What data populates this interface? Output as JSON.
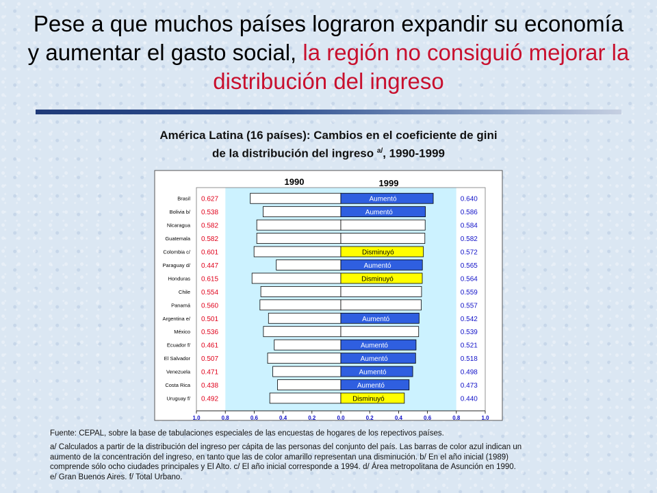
{
  "slide_title": {
    "part1": "Pese a que muchos países lograron expandir su economía y aumentar el gasto social,",
    "part2": "la región no consiguió mejorar la distribución del ingreso"
  },
  "chart_heading": {
    "line1": "América Latina (16 países): Cambios en el coeficiente de gini",
    "line2_pre": "de la distribución del ingreso",
    "line2_sup": "a/",
    "line2_post": ", 1990-1999"
  },
  "chart_data": {
    "type": "bar",
    "title": "",
    "year_labels": [
      "1990",
      "1999"
    ],
    "categories": [
      "Brasil",
      "Bolivia b/",
      "Nicaragua",
      "Guatemala",
      "Colombia c/",
      "Paraguay d/",
      "Honduras",
      "Chile",
      "Panamá",
      "Argentina e/",
      "México",
      "Ecuador f/",
      "El Salvador",
      "Venezuela",
      "Costa Rica",
      "Uruguay f/"
    ],
    "series": [
      {
        "name": "1990",
        "values": [
          0.627,
          0.538,
          0.582,
          0.582,
          0.601,
          0.447,
          0.615,
          0.554,
          0.56,
          0.501,
          0.536,
          0.461,
          0.507,
          0.471,
          0.438,
          0.492
        ]
      },
      {
        "name": "1999",
        "values": [
          0.64,
          0.586,
          0.584,
          0.582,
          0.572,
          0.565,
          0.564,
          0.559,
          0.557,
          0.542,
          0.539,
          0.521,
          0.518,
          0.498,
          0.473,
          0.44
        ]
      }
    ],
    "labels_1990": [
      "0.627",
      "0.538",
      "0.582",
      "0.582",
      "0.601",
      "0.447",
      "0.615",
      "0.554",
      "0.560",
      "0.501",
      "0.536",
      "0.461",
      "0.507",
      "0.471",
      "0.438",
      "0.492"
    ],
    "labels_1999": [
      "0.640",
      "0.586",
      "0.584",
      "0.582",
      "0.572",
      "0.565",
      "0.564",
      "0.559",
      "0.557",
      "0.542",
      "0.539",
      "0.521",
      "0.518",
      "0.498",
      "0.473",
      "0.440"
    ],
    "change": [
      "Aumentó",
      "Aumentó",
      "",
      "",
      "Disminuyó",
      "Aumentó",
      "Disminuyó",
      "",
      "",
      "Aumentó",
      "",
      "Aumentó",
      "Aumentó",
      "Aumentó",
      "Aumentó",
      "Disminuyó"
    ],
    "x_ticks": [
      "1.0",
      "0.8",
      "0.6",
      "0.4",
      "0.2",
      "0.0",
      "0.2",
      "0.4",
      "0.6",
      "0.8",
      "1.0"
    ],
    "xlim": [
      -1.0,
      1.0
    ],
    "colors": {
      "increase": "#2f5fe0",
      "decrease": "#ffff00",
      "neutral": "#ffffff",
      "value_1990": "#e0001a",
      "value_1999": "#1010c8",
      "plot_bg": "#ccf2ff"
    }
  },
  "source_note": "Fuente: CEPAL, sobre la base de tabulaciones especiales de las encuestas de hogares de los repectivos países.",
  "notes": [
    "a/ Calculados a partir de la distribución del ingreso per cápita de las personas del conjunto del país. Las barras de color azul indican un",
    "aumento de la concentración del ingreso, en tanto que las de color amarillo representan una disminución. b/ En el año inicial (1989)",
    "comprende sólo ocho ciudades principales y El Alto. c/ El año inicial corresponde a 1994. d/ Área metropolitana de Asunción en 1990.",
    "e/ Gran Buenos Aires. f/ Total Urbano."
  ]
}
